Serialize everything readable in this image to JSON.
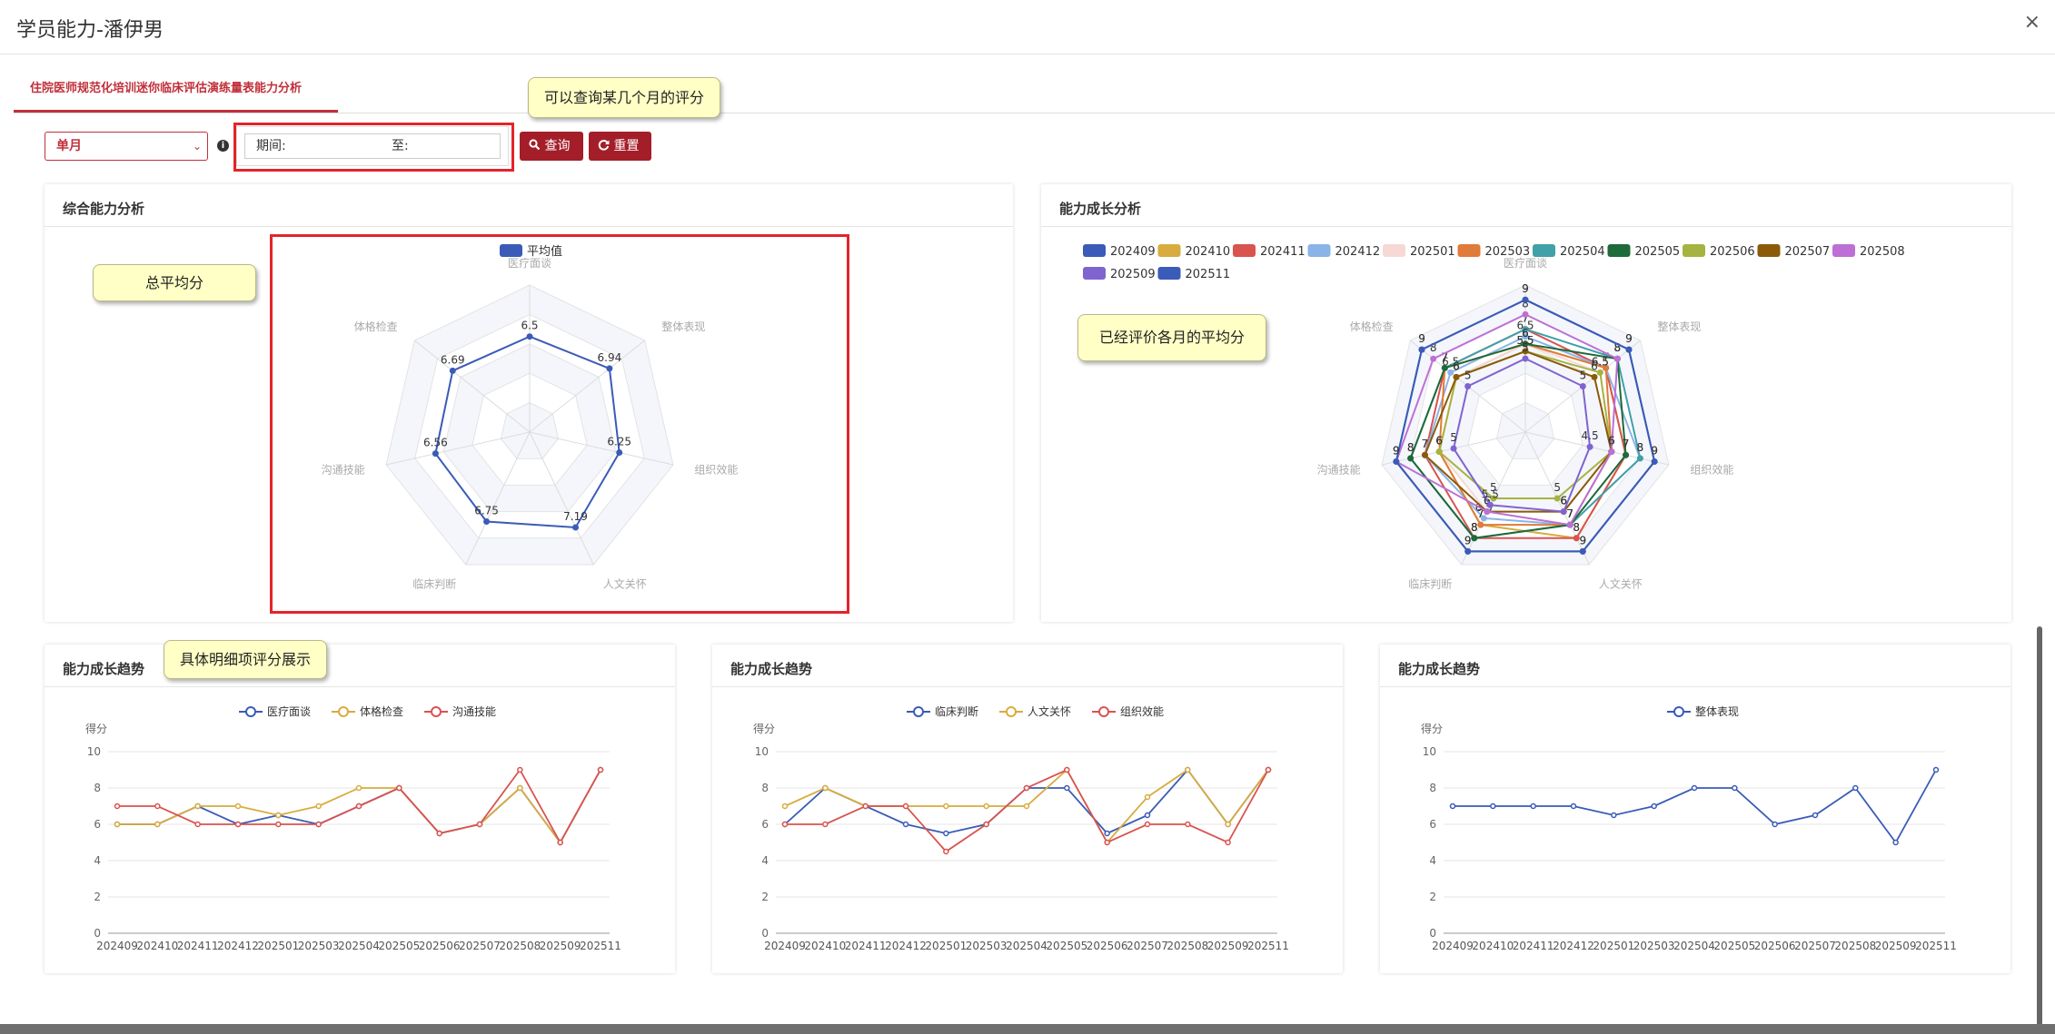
{
  "window": {
    "title": "学员能力-潘伊男",
    "close_label": "×"
  },
  "tab": {
    "label": "住院医师规范化培训迷你临床评估演练量表能力分析"
  },
  "filters": {
    "mode": "单月",
    "period_label": "期间:",
    "to_label": "至:",
    "query_button": "查询",
    "reset_button": "重置"
  },
  "notes": {
    "query_note": "可以查询某几个月的评分",
    "avg_note": "总平均分",
    "monthly_note": "已经评价各月的平均分",
    "detail_note": "具体明细项评分展示"
  },
  "icons": {
    "info": "info-icon",
    "search": "search-icon",
    "refresh": "refresh-icon",
    "chevron": "chevron-down-icon"
  },
  "colors": {
    "accent": "#a41e2a",
    "tab": "#c0303a",
    "highlight": "#e3242b"
  },
  "panels": {
    "overall": {
      "title": "综合能力分析"
    },
    "growth": {
      "title": "能力成长分析"
    },
    "trend1": {
      "title": "能力成长趋势"
    },
    "trend2": {
      "title": "能力成长趋势"
    },
    "trend3": {
      "title": "能力成长趋势"
    }
  },
  "chart_data": [
    {
      "type": "radar",
      "legend": [
        "平均值"
      ],
      "indicators": [
        "医疗面谈",
        "整体表现",
        "组织效能",
        "人文关怀",
        "临床判断",
        "沟通技能",
        "体格检查"
      ],
      "max": 10,
      "series": [
        {
          "name": "平均值",
          "color": "#3a5bb7",
          "values": [
            6.5,
            6.94,
            6.25,
            7.19,
            6.75,
            6.56,
            6.69
          ]
        }
      ]
    },
    {
      "type": "radar",
      "indicators": [
        "医疗面谈",
        "整体表现",
        "组织效能",
        "人文关怀",
        "临床判断",
        "沟通技能",
        "体格检查"
      ],
      "max": 10,
      "series": [
        {
          "name": "202409",
          "color": "#3a5bb7",
          "values": [
            9,
            9,
            9,
            9,
            9,
            9,
            9
          ]
        },
        {
          "name": "202410",
          "color": "#d8ac3e",
          "values": [
            6,
            7,
            7,
            8,
            7,
            6,
            6
          ]
        },
        {
          "name": "202411",
          "color": "#d9534f",
          "values": [
            7,
            7,
            7,
            8,
            8,
            7,
            7
          ]
        },
        {
          "name": "202412",
          "color": "#8ab4e8",
          "values": [
            6.5,
            7,
            8,
            7,
            6.5,
            7,
            6.5
          ]
        },
        {
          "name": "202501",
          "color": "#f6d9d4",
          "values": [
            6,
            6.5,
            6,
            6,
            6,
            6,
            6
          ]
        },
        {
          "name": "202503",
          "color": "#e07b39",
          "values": [
            6,
            7,
            6,
            7,
            7,
            6,
            7
          ]
        },
        {
          "name": "202504",
          "color": "#41a0a8",
          "values": [
            7,
            8,
            8,
            7,
            8,
            8,
            7
          ]
        },
        {
          "name": "202505",
          "color": "#1e6a3a",
          "values": [
            6,
            8,
            7,
            7,
            8,
            8,
            7
          ]
        },
        {
          "name": "202506",
          "color": "#a6b341",
          "values": [
            5.5,
            6.5,
            6,
            5,
            5,
            6,
            6
          ]
        },
        {
          "name": "202507",
          "color": "#8a5a0a",
          "values": [
            5.5,
            6,
            6,
            6,
            6,
            7,
            6
          ]
        },
        {
          "name": "202508",
          "color": "#bd6fd6",
          "values": [
            8,
            8,
            6,
            7,
            6,
            9,
            8
          ]
        },
        {
          "name": "202509",
          "color": "#7f64cf",
          "values": [
            5,
            5,
            4.5,
            6,
            5.5,
            5,
            5
          ]
        },
        {
          "name": "202511",
          "color": "#3a5bb7",
          "values": [
            9,
            9,
            9,
            9,
            9,
            9,
            9
          ]
        }
      ]
    },
    {
      "type": "line",
      "x": [
        "202409",
        "202410",
        "202411",
        "202412",
        "202501",
        "202503",
        "202504",
        "202505",
        "202506",
        "202507",
        "202508",
        "202509",
        "202511"
      ],
      "ylabel": "得分",
      "ylim": [
        0,
        10
      ],
      "yticks": [
        0,
        2,
        4,
        6,
        8,
        10
      ],
      "series": [
        {
          "name": "医疗面谈",
          "color": "#3a5bb7",
          "values": [
            6,
            6,
            7,
            6,
            6.5,
            6,
            7,
            8,
            5.5,
            6,
            8,
            5,
            9
          ]
        },
        {
          "name": "体格检查",
          "color": "#d8ac3e",
          "values": [
            6,
            6,
            7,
            7,
            6.5,
            7,
            8,
            8,
            5.5,
            6,
            8,
            5,
            9
          ]
        },
        {
          "name": "沟通技能",
          "color": "#d9534f",
          "values": [
            7,
            7,
            6,
            6,
            6,
            6,
            7,
            8,
            5.5,
            6,
            9,
            5,
            9
          ]
        }
      ]
    },
    {
      "type": "line",
      "x": [
        "202409",
        "202410",
        "202411",
        "202412",
        "202501",
        "202503",
        "202504",
        "202505",
        "202506",
        "202507",
        "202508",
        "202509",
        "202511"
      ],
      "ylabel": "得分",
      "ylim": [
        0,
        10
      ],
      "yticks": [
        0,
        2,
        4,
        6,
        8,
        10
      ],
      "series": [
        {
          "name": "临床判断",
          "color": "#3a5bb7",
          "values": [
            6,
            8,
            7,
            6,
            5.5,
            6,
            8,
            8,
            5.5,
            6.5,
            9,
            6,
            9
          ]
        },
        {
          "name": "人文关怀",
          "color": "#d8ac3e",
          "values": [
            7,
            8,
            7,
            7,
            7,
            7,
            7,
            9,
            5,
            7.5,
            9,
            6,
            9
          ]
        },
        {
          "name": "组织效能",
          "color": "#d9534f",
          "values": [
            6,
            6,
            7,
            7,
            4.5,
            6,
            8,
            9,
            5,
            6,
            6,
            5,
            9
          ]
        }
      ]
    },
    {
      "type": "line",
      "x": [
        "202409",
        "202410",
        "202411",
        "202412",
        "202501",
        "202503",
        "202504",
        "202505",
        "202506",
        "202507",
        "202508",
        "202509",
        "202511"
      ],
      "ylabel": "得分",
      "ylim": [
        0,
        10
      ],
      "yticks": [
        0,
        2,
        4,
        6,
        8,
        10
      ],
      "series": [
        {
          "name": "整体表现",
          "color": "#3a5bb7",
          "values": [
            7,
            7,
            7,
            7,
            6.5,
            7,
            8,
            8,
            6,
            6.5,
            8,
            5,
            9
          ]
        }
      ]
    }
  ]
}
